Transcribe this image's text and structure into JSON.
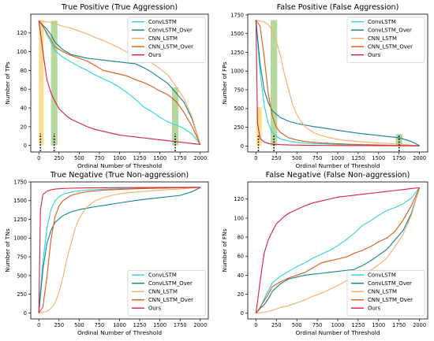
{
  "colors": {
    "ConvLSTM": "#2bd3d6",
    "ConvLSTM_Over": "#128290",
    "CNN_LSTM": "#f4ad69",
    "CNN_LSTM_Over": "#d85a18",
    "Ours": "#d81e47",
    "highlight_yellow": "#fcd97a",
    "highlight_green": "#a8d18d"
  },
  "chart_data": [
    {
      "type": "line",
      "title": "True Positive (True Aggression)",
      "xlabel": "Ordinal Number of Threshold",
      "ylabel": "Number of TPs",
      "xlim": [
        -100,
        2100
      ],
      "ylim": [
        -7,
        140
      ],
      "xticks": [
        0,
        250,
        500,
        750,
        1000,
        1250,
        1500,
        1750,
        2000
      ],
      "yticks": [
        0,
        20,
        40,
        60,
        80,
        100,
        120
      ],
      "legend": "top-right",
      "grid": false,
      "highlights": [
        {
          "x": [
            0,
            60
          ],
          "y": [
            0,
            133
          ],
          "color": "yellow"
        },
        {
          "x": [
            150,
            230
          ],
          "y": [
            0,
            133
          ],
          "color": "green"
        },
        {
          "x": [
            1650,
            1730
          ],
          "y": [
            0,
            62
          ],
          "color": "green"
        }
      ],
      "markers_x": [
        20,
        190,
        1690
      ],
      "series": [
        {
          "name": "ConvLSTM",
          "x": [
            0,
            50,
            100,
            150,
            200,
            300,
            400,
            500,
            600,
            700,
            800,
            900,
            1000,
            1100,
            1200,
            1300,
            1400,
            1500,
            1600,
            1700,
            1800,
            1900,
            2000
          ],
          "y": [
            133,
            128,
            118,
            110,
            101,
            94,
            89,
            84,
            80,
            75,
            71,
            67,
            62,
            56,
            49,
            41,
            36,
            30,
            25,
            22,
            18,
            12,
            1
          ]
        },
        {
          "name": "ConvLSTM_Over",
          "x": [
            0,
            50,
            100,
            150,
            200,
            300,
            400,
            500,
            600,
            700,
            800,
            900,
            1000,
            1100,
            1200,
            1300,
            1400,
            1500,
            1600,
            1700,
            1800,
            1900,
            2000
          ],
          "y": [
            133,
            128,
            124,
            118,
            110,
            102,
            97,
            95,
            93,
            92,
            91,
            90,
            89,
            88,
            87,
            83,
            78,
            72,
            66,
            56,
            46,
            28,
            1
          ]
        },
        {
          "name": "CNN_LSTM",
          "x": [
            0,
            100,
            200,
            300,
            400,
            500,
            600,
            700,
            800,
            900,
            1000,
            1100,
            1200,
            1300,
            1400,
            1500,
            1600,
            1700,
            1800,
            1900,
            2000
          ],
          "y": [
            133,
            132,
            130,
            127,
            125,
            122,
            119,
            115,
            112,
            108,
            104,
            99,
            96,
            93,
            88,
            82,
            75,
            63,
            50,
            30,
            1
          ]
        },
        {
          "name": "CNN_LSTM_Over",
          "x": [
            0,
            50,
            100,
            150,
            200,
            300,
            400,
            500,
            600,
            700,
            800,
            900,
            1000,
            1100,
            1200,
            1300,
            1400,
            1500,
            1600,
            1700,
            1800,
            1900,
            2000
          ],
          "y": [
            133,
            127,
            120,
            113,
            105,
            100,
            96,
            93,
            90,
            85,
            80,
            78,
            76,
            74,
            70,
            67,
            63,
            58,
            54,
            47,
            35,
            20,
            1
          ]
        },
        {
          "name": "Ours",
          "x": [
            0,
            25,
            50,
            75,
            100,
            150,
            200,
            250,
            300,
            350,
            400,
            500,
            600,
            700,
            800,
            900,
            1000,
            1100,
            1200,
            1300,
            1400,
            1500,
            1600,
            1700,
            1800,
            1900,
            2000
          ],
          "y": [
            133,
            117,
            100,
            85,
            70,
            56,
            47,
            39,
            35,
            31,
            28,
            24,
            20,
            17,
            15,
            13,
            11,
            10,
            9,
            8,
            7,
            6,
            5,
            4,
            3,
            2,
            1
          ]
        }
      ]
    },
    {
      "type": "line",
      "title": "False Positive (False Aggression)",
      "xlabel": "Ordinal Number of Threshold",
      "ylabel": "Number of FPs",
      "xlim": [
        -100,
        2100
      ],
      "ylim": [
        -80,
        1760
      ],
      "xticks": [
        0,
        250,
        500,
        750,
        1000,
        1250,
        1500,
        1750,
        2000
      ],
      "yticks": [
        0,
        250,
        500,
        750,
        1000,
        1250,
        1500,
        1750
      ],
      "legend": "top-right",
      "grid": false,
      "highlights": [
        {
          "x": [
            5,
            70
          ],
          "y": [
            0,
            520
          ],
          "color": "yellow"
        },
        {
          "x": [
            180,
            260
          ],
          "y": [
            0,
            1680
          ],
          "color": "green"
        },
        {
          "x": [
            1710,
            1790
          ],
          "y": [
            0,
            160
          ],
          "color": "green"
        }
      ],
      "markers_x": [
        30,
        220,
        1750
      ],
      "series": [
        {
          "name": "ConvLSTM",
          "x": [
            0,
            20,
            50,
            100,
            150,
            200,
            250,
            300,
            400,
            500,
            600,
            800,
            1000,
            1250,
            1500,
            1750,
            2000
          ],
          "y": [
            1680,
            1400,
            1000,
            550,
            300,
            180,
            130,
            95,
            65,
            48,
            38,
            28,
            20,
            15,
            11,
            7,
            3
          ]
        },
        {
          "name": "ConvLSTM_Over",
          "x": [
            0,
            50,
            100,
            150,
            200,
            300,
            400,
            500,
            600,
            700,
            800,
            1000,
            1250,
            1500,
            1750,
            1900,
            2000
          ],
          "y": [
            1680,
            1100,
            750,
            580,
            470,
            380,
            330,
            300,
            280,
            260,
            245,
            210,
            170,
            140,
            110,
            60,
            5
          ]
        },
        {
          "name": "CNN_LSTM",
          "x": [
            0,
            100,
            150,
            200,
            250,
            300,
            350,
            400,
            450,
            500,
            550,
            600,
            700,
            800,
            900,
            1000,
            1100,
            1250,
            1500,
            1750,
            2000
          ],
          "y": [
            1680,
            1660,
            1620,
            1550,
            1400,
            1200,
            950,
            750,
            550,
            420,
            330,
            260,
            180,
            140,
            110,
            90,
            75,
            60,
            40,
            25,
            3
          ]
        },
        {
          "name": "CNN_LSTM_Over",
          "x": [
            0,
            50,
            100,
            150,
            200,
            250,
            300,
            400,
            500,
            600,
            800,
            1000,
            1250,
            1500,
            1750,
            2000
          ],
          "y": [
            1680,
            1600,
            1200,
            700,
            400,
            250,
            180,
            110,
            80,
            60,
            40,
            30,
            20,
            14,
            8,
            3
          ]
        },
        {
          "name": "Ours",
          "x": [
            0,
            20,
            50,
            100,
            150,
            200,
            300,
            400,
            600,
            800,
            1000,
            1500,
            2000
          ],
          "y": [
            1680,
            300,
            100,
            55,
            35,
            25,
            18,
            14,
            10,
            8,
            6,
            4,
            2
          ]
        }
      ]
    },
    {
      "type": "line",
      "title": "True Negative (True Non-aggression)",
      "xlabel": "Ordinal Number of Threshold",
      "ylabel": "Number of TNs",
      "xlim": [
        -100,
        2100
      ],
      "ylim": [
        -80,
        1750
      ],
      "xticks": [
        0,
        250,
        500,
        750,
        1000,
        1250,
        1500,
        1750,
        2000
      ],
      "yticks": [
        0,
        250,
        500,
        750,
        1000,
        1250,
        1500,
        1750
      ],
      "legend": "bottom-right",
      "grid": false,
      "highlights": [],
      "markers_x": [],
      "series": [
        {
          "name": "ConvLSTM",
          "x": [
            0,
            20,
            50,
            100,
            150,
            200,
            250,
            300,
            400,
            500,
            600,
            800,
            1000,
            1250,
            1500,
            1750,
            2000
          ],
          "y": [
            0,
            280,
            680,
            1130,
            1380,
            1500,
            1550,
            1585,
            1615,
            1632,
            1642,
            1652,
            1660,
            1665,
            1669,
            1673,
            1677
          ]
        },
        {
          "name": "ConvLSTM_Over",
          "x": [
            0,
            50,
            100,
            150,
            200,
            300,
            400,
            500,
            600,
            700,
            800,
            1000,
            1250,
            1500,
            1750,
            1900,
            2000
          ],
          "y": [
            0,
            580,
            930,
            1100,
            1210,
            1300,
            1350,
            1380,
            1400,
            1420,
            1435,
            1470,
            1510,
            1540,
            1570,
            1620,
            1675
          ]
        },
        {
          "name": "CNN_LSTM",
          "x": [
            0,
            100,
            150,
            200,
            250,
            300,
            350,
            400,
            450,
            500,
            550,
            600,
            700,
            800,
            900,
            1000,
            1100,
            1250,
            1500,
            1750,
            2000
          ],
          "y": [
            0,
            20,
            60,
            130,
            280,
            480,
            730,
            930,
            1130,
            1260,
            1350,
            1420,
            1500,
            1540,
            1570,
            1590,
            1605,
            1620,
            1640,
            1655,
            1677
          ]
        },
        {
          "name": "CNN_LSTM_Over",
          "x": [
            0,
            50,
            100,
            150,
            200,
            250,
            300,
            400,
            500,
            600,
            800,
            1000,
            1250,
            1500,
            1750,
            2000
          ],
          "y": [
            0,
            80,
            480,
            980,
            1280,
            1430,
            1500,
            1570,
            1600,
            1620,
            1640,
            1650,
            1660,
            1666,
            1672,
            1677
          ]
        },
        {
          "name": "Ours",
          "x": [
            0,
            20,
            50,
            100,
            150,
            200,
            300,
            400,
            600,
            800,
            1000,
            1500,
            2000
          ],
          "y": [
            0,
            1380,
            1580,
            1625,
            1645,
            1655,
            1662,
            1666,
            1670,
            1672,
            1674,
            1676,
            1678
          ]
        }
      ]
    },
    {
      "type": "line",
      "title": "False Negative (False Non-aggression)",
      "xlabel": "Ordinal Number of Threshold",
      "ylabel": "Number of FNs",
      "xlim": [
        -100,
        2100
      ],
      "ylim": [
        -6,
        138
      ],
      "xticks": [
        0,
        250,
        500,
        750,
        1000,
        1250,
        1500,
        1750,
        2000
      ],
      "yticks": [
        0,
        20,
        40,
        60,
        80,
        100,
        120
      ],
      "legend": "bottom-right",
      "grid": false,
      "highlights": [],
      "markers_x": [],
      "series": [
        {
          "name": "ConvLSTM",
          "x": [
            0,
            50,
            100,
            150,
            200,
            300,
            400,
            500,
            600,
            700,
            800,
            900,
            1000,
            1100,
            1200,
            1300,
            1400,
            1500,
            1600,
            1700,
            1800,
            1900,
            2000
          ],
          "y": [
            0,
            5,
            15,
            23,
            32,
            39,
            44,
            49,
            53,
            58,
            62,
            66,
            71,
            77,
            84,
            92,
            97,
            103,
            108,
            111,
            115,
            121,
            132
          ]
        },
        {
          "name": "ConvLSTM_Over",
          "x": [
            0,
            50,
            100,
            150,
            200,
            300,
            400,
            500,
            600,
            700,
            800,
            900,
            1000,
            1100,
            1200,
            1300,
            1400,
            1500,
            1600,
            1700,
            1800,
            1900,
            2000
          ],
          "y": [
            0,
            5,
            9,
            15,
            23,
            31,
            36,
            38,
            40,
            41,
            42,
            43,
            44,
            45,
            46,
            50,
            55,
            61,
            67,
            77,
            87,
            105,
            132
          ]
        },
        {
          "name": "CNN_LSTM",
          "x": [
            0,
            100,
            200,
            300,
            400,
            500,
            600,
            700,
            800,
            900,
            1000,
            1100,
            1200,
            1300,
            1400,
            1500,
            1600,
            1700,
            1800,
            1900,
            2000
          ],
          "y": [
            0,
            1,
            3,
            6,
            8,
            11,
            14,
            18,
            21,
            25,
            29,
            34,
            37,
            40,
            45,
            51,
            58,
            70,
            83,
            103,
            132
          ]
        },
        {
          "name": "CNN_LSTM_Over",
          "x": [
            0,
            50,
            100,
            150,
            200,
            300,
            400,
            500,
            600,
            700,
            800,
            900,
            1000,
            1100,
            1200,
            1300,
            1400,
            1500,
            1600,
            1700,
            1800,
            1900,
            2000
          ],
          "y": [
            0,
            6,
            13,
            20,
            28,
            33,
            37,
            40,
            43,
            48,
            53,
            55,
            57,
            59,
            63,
            66,
            70,
            75,
            79,
            86,
            98,
            113,
            132
          ]
        },
        {
          "name": "Ours",
          "x": [
            0,
            25,
            50,
            75,
            100,
            150,
            200,
            250,
            300,
            350,
            400,
            500,
            600,
            700,
            800,
            900,
            1000,
            1100,
            1200,
            1300,
            1400,
            1500,
            1600,
            1700,
            1800,
            1900,
            2000
          ],
          "y": [
            0,
            16,
            33,
            48,
            63,
            77,
            86,
            94,
            98,
            102,
            105,
            109,
            113,
            116,
            118,
            120,
            122,
            123,
            124,
            125,
            126,
            127,
            128,
            129,
            130,
            131,
            132
          ]
        }
      ]
    }
  ]
}
